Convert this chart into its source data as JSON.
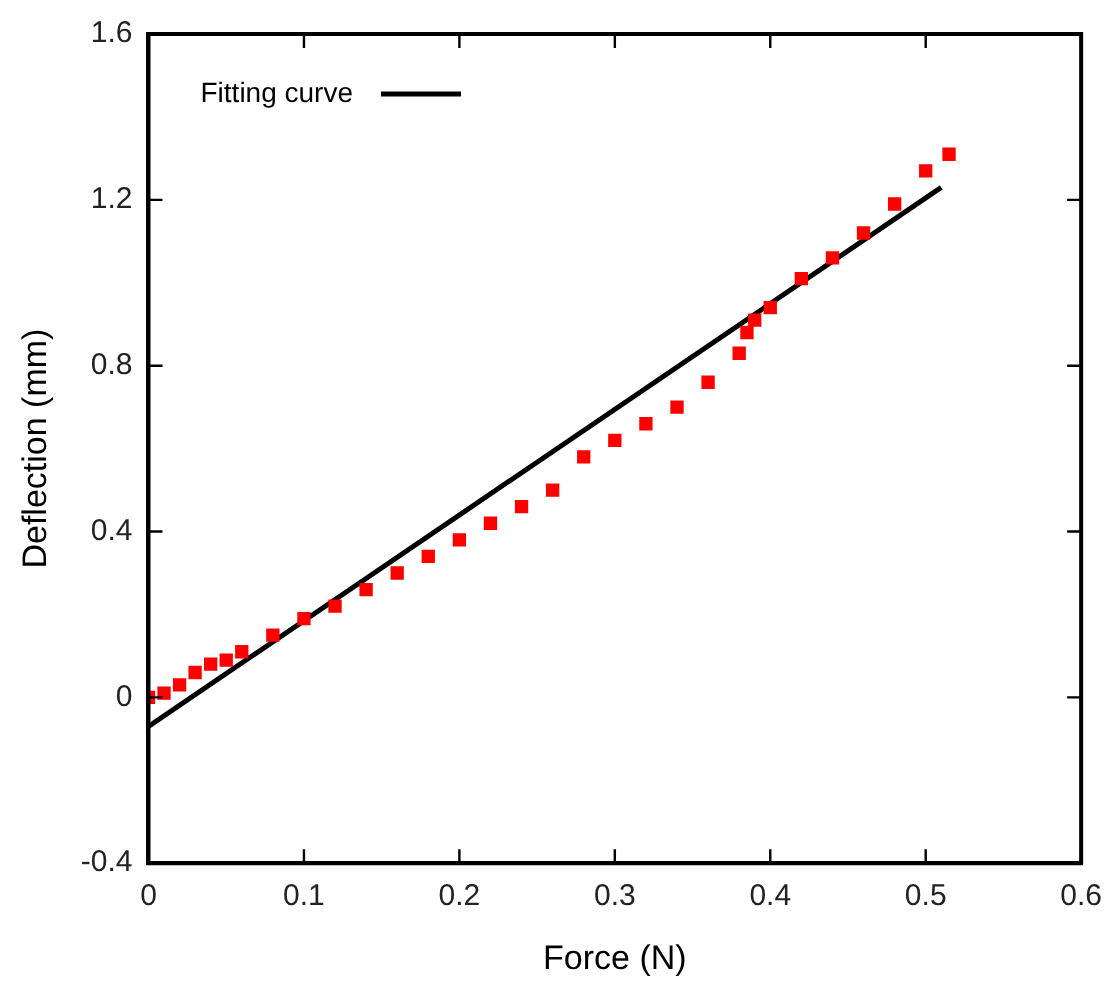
{
  "chart_data": {
    "type": "scatter",
    "xlabel": "Force (N)",
    "ylabel": "Deflection (mm)",
    "xlim": [
      0,
      0.6
    ],
    "ylim": [
      -0.4,
      1.6
    ],
    "xticks": [
      0,
      0.1,
      0.2,
      0.3,
      0.4,
      0.5,
      0.6
    ],
    "yticks": [
      -0.4,
      0,
      0.4,
      0.8,
      1.2,
      1.6
    ],
    "grid": false,
    "legend": "top left",
    "marker": "square",
    "series": [
      {
        "color": "#ff0000",
        "x": [
          0,
          0.01,
          0.02,
          0.03,
          0.04,
          0.05,
          0.06,
          0.08,
          0.1,
          0.12,
          0.14,
          0.16,
          0.18,
          0.2,
          0.22,
          0.24,
          0.26,
          0.28,
          0.3,
          0.32,
          0.34,
          0.36,
          0.38,
          0.385,
          0.39,
          0.4,
          0.42,
          0.44,
          0.46,
          0.48,
          0.5,
          0.515
        ],
        "values": [
          0,
          0.01,
          0.03,
          0.06,
          0.08,
          0.09,
          0.11,
          0.15,
          0.19,
          0.22,
          0.26,
          0.3,
          0.34,
          0.38,
          0.42,
          0.46,
          0.5,
          0.58,
          0.62,
          0.66,
          0.7,
          0.76,
          0.83,
          0.88,
          0.91,
          0.94,
          1.01,
          1.06,
          1.12,
          1.19,
          1.27,
          1.31
        ]
      },
      {
        "type": "line",
        "name": "Fitting curve",
        "color": "#000000",
        "marker": "none",
        "x": [
          0,
          0.51
        ],
        "values": [
          -0.07,
          1.23
        ]
      }
    ]
  }
}
